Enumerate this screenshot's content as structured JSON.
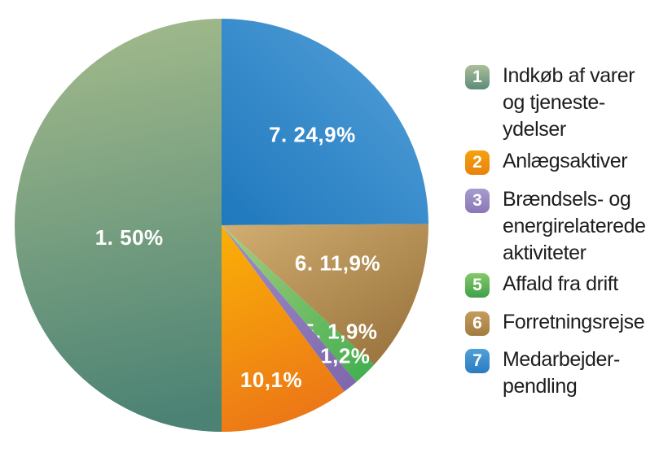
{
  "chart_data": {
    "type": "pie",
    "center": [
      272,
      277
    ],
    "radius": 254,
    "start_angle_deg": 0,
    "direction": "clockwise",
    "legend_position": "right",
    "slices": [
      {
        "id": 7,
        "name": "Medarbejderpendling",
        "value": 24.9,
        "label": "7. 24,9%",
        "label_angle": 45,
        "label_r": 0.62,
        "gradient": {
          "from": [
            1,
            0
          ],
          "to": [
            0,
            1
          ],
          "stops": [
            "#55a2da",
            "#1f78bd"
          ]
        }
      },
      {
        "id": 6,
        "name": "Forretningsrejse",
        "value": 11.9,
        "label": "6. 11,9%",
        "label_angle": 108,
        "label_r": 0.59,
        "gradient": {
          "from": [
            0,
            0
          ],
          "to": [
            0.9,
            1
          ],
          "stops": [
            "#d2ae72",
            "#97713a"
          ]
        }
      },
      {
        "id": 5,
        "name": "Affald fra drift",
        "value": 1.9,
        "label": "5. 1,9%",
        "label_angle": 131.9,
        "label_r": 0.77,
        "gradient": {
          "from": [
            0,
            0
          ],
          "to": [
            1,
            1
          ],
          "stops": [
            "#a9ce81",
            "#3fae4e"
          ]
        }
      },
      {
        "id": 3,
        "name": "Brændsels- og energirelaterede aktiviteter",
        "value": 1.2,
        "label": "3. 1,2%",
        "label_angle": 139.6,
        "label_r": 0.83,
        "gradient": {
          "from": [
            0,
            0
          ],
          "to": [
            1,
            1
          ],
          "stops": [
            "#9d8fc6",
            "#7e66ad"
          ]
        }
      },
      {
        "id": 2,
        "name": "Anlægsaktiver",
        "value": 10.1,
        "label": "10,1%",
        "label_angle": 162.2,
        "label_r": 0.785,
        "gradient": {
          "from": [
            0.3,
            0
          ],
          "to": [
            0.55,
            1
          ],
          "stops": [
            "#f9ad08",
            "#ec7517"
          ]
        }
      },
      {
        "id": 1,
        "name": "Indkøb af varer og tjenesteydelser",
        "value": 50,
        "label": "1. 50%",
        "label_angle": 262.5,
        "label_r": 0.45,
        "gradient": {
          "from": [
            0.4,
            0
          ],
          "to": [
            0.5,
            1
          ],
          "stops": [
            "#a2ba8b",
            "#4b8274"
          ]
        }
      }
    ]
  },
  "legend": {
    "items": [
      {
        "number": "1",
        "label": "Indkøb af varer\nog tjeneste-\nydelser",
        "gradient": [
          "#abbf99",
          "#5d8b7b"
        ]
      },
      {
        "number": "2",
        "label": "Anlægsaktiver",
        "gradient": [
          "#f5a20f",
          "#e8820c"
        ]
      },
      {
        "number": "3",
        "label": "Brændsels- og\nenergirelaterede\naktiviteter",
        "gradient": [
          "#a79ccd",
          "#8b77b7"
        ]
      },
      {
        "number": "5",
        "label": "Affald fra drift",
        "gradient": [
          "#84ca67",
          "#3ea04b"
        ]
      },
      {
        "number": "6",
        "label": "Forretningsrejse",
        "gradient": [
          "#c59c5e",
          "#a27c40"
        ]
      },
      {
        "number": "7",
        "label": "Medarbejder-\npendling",
        "gradient": [
          "#51a0d9",
          "#2a7cc0"
        ]
      }
    ]
  }
}
